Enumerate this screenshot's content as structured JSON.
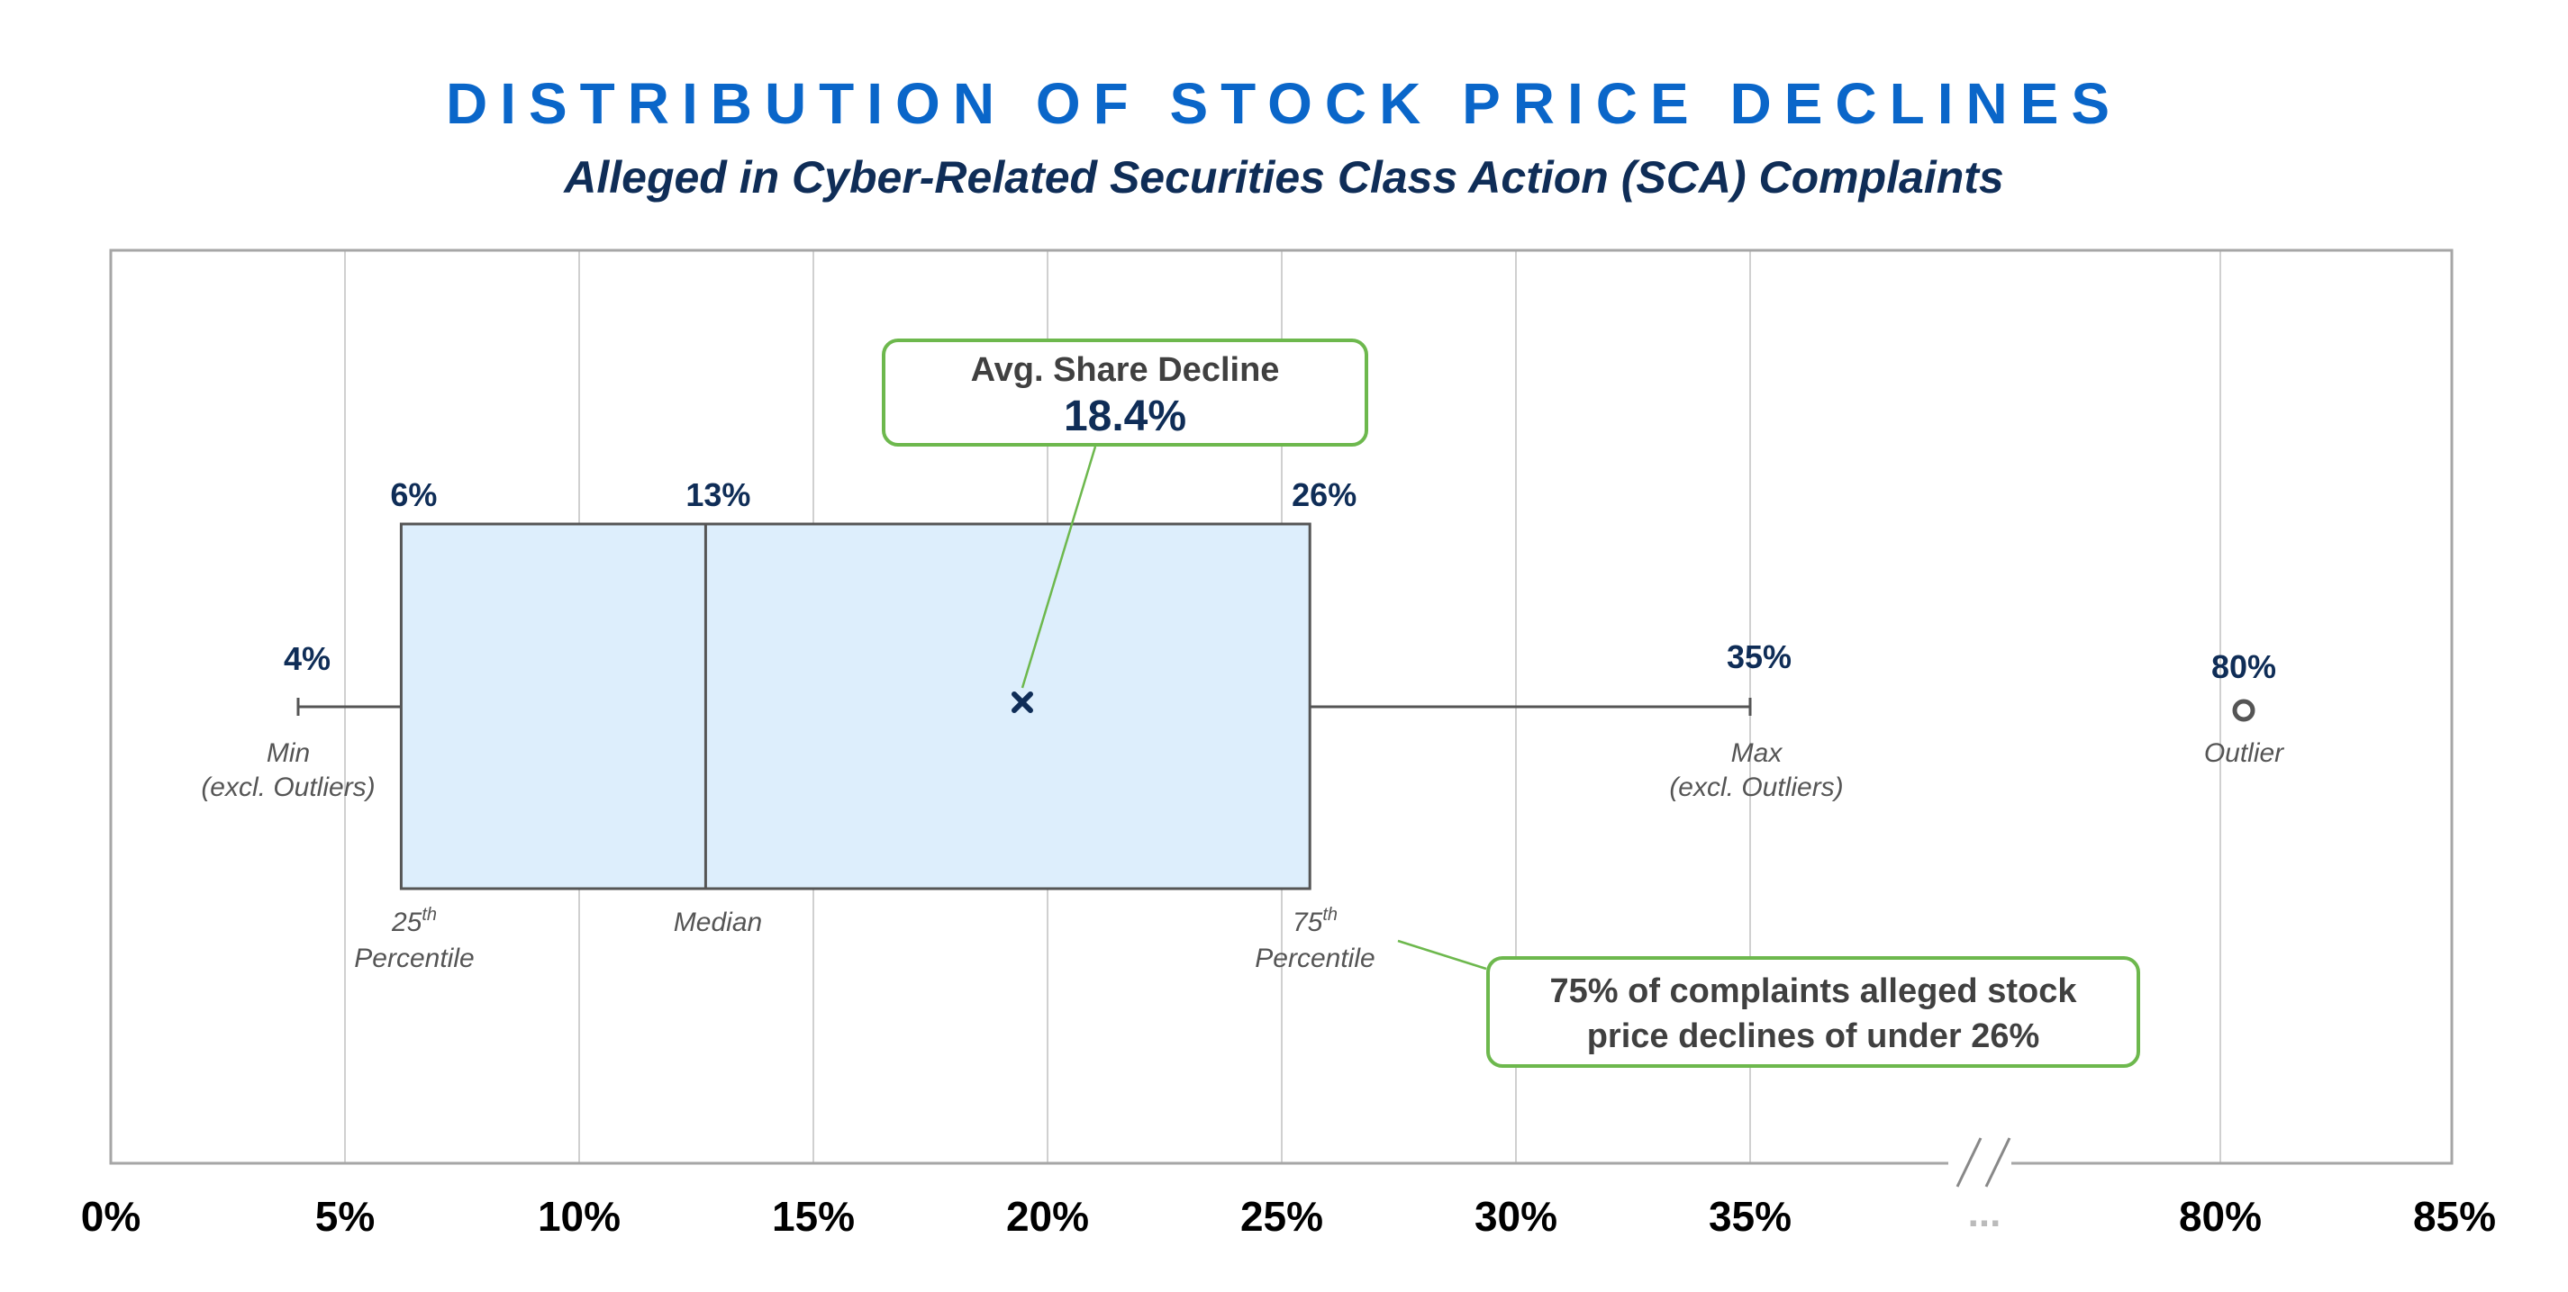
{
  "title": "DISTRIBUTION OF STOCK PRICE DECLINES",
  "subtitle": "Alleged in Cyber-Related Securities Class Action (SCA) Complaints",
  "colors": {
    "box_fill": "#ddeefc",
    "box_stroke": "#555555",
    "grid": "#d0d0d0",
    "frame": "#a6a6a6",
    "value_label": "#0f2d57",
    "annotation": "#555555",
    "callout_border": "#6db84d",
    "title": "#0a66c9",
    "subtitle": "#0f2d57"
  },
  "callouts": {
    "average": {
      "label": "Avg. Share Decline",
      "value": "18.4%"
    },
    "note": {
      "line1": "75% of complaints alleged stock",
      "line2": "price declines of under 26%"
    }
  },
  "chart_data": {
    "type": "box",
    "title": "DISTRIBUTION OF STOCK PRICE DECLINES",
    "subtitle": "Alleged in Cyber-Related Securities Class Action (SCA) Complaints",
    "x_axis": {
      "ticks": [
        {
          "value": 0,
          "label": "0%"
        },
        {
          "value": 5,
          "label": "5%"
        },
        {
          "value": 10,
          "label": "10%"
        },
        {
          "value": 15,
          "label": "15%"
        },
        {
          "value": 20,
          "label": "20%"
        },
        {
          "value": 25,
          "label": "25%"
        },
        {
          "value": 30,
          "label": "30%"
        },
        {
          "value": 35,
          "label": "35%"
        },
        {
          "value": 80,
          "label": "80%"
        },
        {
          "value": 85,
          "label": "85%"
        }
      ],
      "break": {
        "from": 35,
        "to": 80,
        "label": "..."
      },
      "grid": true
    },
    "stats": {
      "min": {
        "value": 4,
        "label": "4%",
        "caption_line1": "Min",
        "caption_line2": "(excl. Outliers)"
      },
      "q1": {
        "value": 6.2,
        "label": "6%",
        "caption_sup_base": "25",
        "caption_sup": "th",
        "caption_line2": "Percentile"
      },
      "median": {
        "value": 12.7,
        "label": "13%",
        "caption": "Median"
      },
      "q3": {
        "value": 25.6,
        "label": "26%",
        "caption_sup_base": "75",
        "caption_sup": "th",
        "caption_line2": "Percentile"
      },
      "max": {
        "value": 35,
        "label": "35%",
        "caption_line1": "Max",
        "caption_line2": "(excl. Outliers)"
      },
      "mean": {
        "value": 18.4,
        "marker": "x"
      },
      "outliers": [
        {
          "value": 80.5,
          "label": "80%",
          "caption": "Outlier"
        }
      ]
    }
  }
}
